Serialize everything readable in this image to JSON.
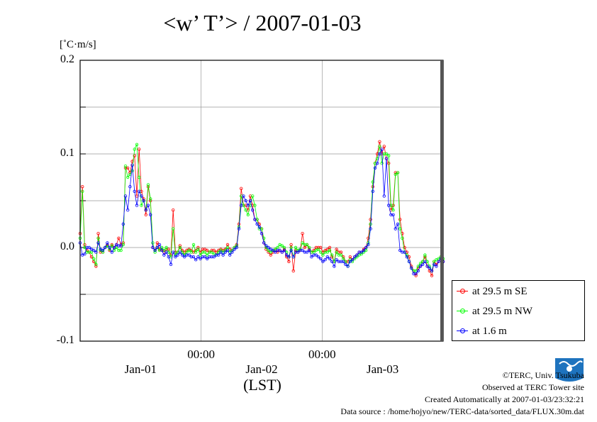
{
  "title": "<w’ T’> / 2007-01-03",
  "unit": "[˚C·m/s]",
  "xaxis_bottom_label": "(LST)",
  "legend": [
    {
      "label": "at 29.5 m SE",
      "color": "#ff0000"
    },
    {
      "label": "at 29.5 m NW",
      "color": "#00ff00"
    },
    {
      "label": "at 1.6 m",
      "color": "#0000ff"
    }
  ],
  "footer": {
    "copyright": "©TERC, Univ. Tsukuba",
    "observed": "Observed at TERC Tower site",
    "created": "Created Automatically at 2007-01-03/23:32:21",
    "source": "Data source : /home/hojyo/new/TERC-data/sorted_data/FLUX.30m.dat"
  },
  "logo_text": "TERC",
  "chart_data": {
    "type": "line",
    "ylim": [
      -0.1,
      0.2
    ],
    "yticks": [
      "0.2",
      "0.1",
      "0.0",
      "-0.1"
    ],
    "xlim_hours": [
      0,
      72
    ],
    "xticks_top": [
      {
        "label": "00:00",
        "hour": 24
      },
      {
        "label": "00:00",
        "hour": 48
      }
    ],
    "xticks_bottom": [
      {
        "label": "Jan-01",
        "hour": 12
      },
      {
        "label": "Jan-02",
        "hour": 36
      },
      {
        "label": "Jan-03",
        "hour": 60
      }
    ],
    "grid": true,
    "series": [
      {
        "name": "at 29.5 m SE",
        "color": "#ff0000",
        "values": [
          0.015,
          0.065,
          0.003,
          -0.003,
          -0.005,
          -0.01,
          -0.015,
          -0.02,
          0.015,
          -0.005,
          -0.005,
          0.0,
          0.003,
          -0.003,
          0.003,
          0.0,
          0.003,
          0.01,
          0.003,
          0.005,
          0.085,
          0.085,
          0.08,
          0.092,
          0.098,
          0.055,
          0.105,
          0.06,
          0.052,
          0.035,
          0.065,
          0.05,
          0.0,
          -0.003,
          0.005,
          -0.002,
          -0.002,
          -0.005,
          -0.002,
          -0.002,
          -0.008,
          0.04,
          -0.005,
          -0.005,
          0.002,
          -0.003,
          -0.005,
          -0.003,
          -0.002,
          -0.003,
          -0.005,
          -0.003,
          0.0,
          -0.005,
          -0.002,
          -0.002,
          -0.003,
          -0.005,
          -0.003,
          -0.003,
          -0.005,
          -0.003,
          -0.002,
          -0.003,
          -0.002,
          0.003,
          -0.002,
          -0.003,
          0.0,
          0.003,
          0.025,
          0.063,
          0.045,
          0.045,
          0.04,
          0.055,
          0.045,
          0.03,
          0.03,
          0.025,
          0.02,
          0.005,
          -0.002,
          -0.005,
          -0.008,
          -0.005,
          -0.003,
          -0.005,
          -0.003,
          -0.005,
          -0.002,
          -0.01,
          -0.015,
          0.003,
          -0.025,
          -0.003,
          -0.005,
          -0.003,
          0.015,
          0.0,
          0.003,
          -0.002,
          -0.005,
          -0.003,
          0.0,
          0.0,
          0.0,
          -0.005,
          -0.003,
          -0.002,
          0.0,
          -0.01,
          -0.015,
          -0.002,
          -0.005,
          -0.005,
          -0.01,
          -0.015,
          -0.015,
          -0.01,
          -0.013,
          -0.01,
          -0.008,
          -0.005,
          -0.005,
          -0.002,
          0.0,
          0.01,
          0.03,
          0.065,
          0.09,
          0.1,
          0.113,
          0.1,
          0.108,
          0.095,
          0.09,
          0.04,
          0.045,
          0.08,
          0.08,
          0.03,
          0.015,
          0.0,
          -0.005,
          -0.01,
          -0.02,
          -0.025,
          -0.03,
          -0.022,
          -0.02,
          -0.015,
          -0.01,
          -0.02,
          -0.025,
          -0.03,
          -0.015,
          -0.018,
          -0.015,
          -0.01,
          -0.015
        ]
      },
      {
        "name": "at 29.5 m NW",
        "color": "#00ff00",
        "values": [
          0.01,
          0.06,
          0.0,
          -0.005,
          -0.005,
          -0.005,
          -0.012,
          -0.018,
          0.01,
          -0.003,
          -0.005,
          0.0,
          0.002,
          -0.002,
          0.002,
          -0.003,
          0.0,
          -0.003,
          -0.003,
          0.003,
          0.087,
          0.075,
          0.078,
          0.082,
          0.105,
          0.11,
          0.075,
          0.045,
          0.05,
          0.04,
          0.067,
          0.052,
          0.005,
          -0.005,
          0.0,
          -0.003,
          0.0,
          -0.003,
          0.0,
          -0.005,
          -0.01,
          0.02,
          -0.008,
          -0.005,
          0.0,
          -0.005,
          -0.008,
          -0.005,
          -0.003,
          -0.005,
          0.003,
          -0.005,
          -0.002,
          -0.008,
          -0.005,
          -0.005,
          -0.008,
          -0.005,
          -0.005,
          -0.007,
          -0.008,
          -0.005,
          -0.003,
          -0.005,
          -0.003,
          0.0,
          -0.005,
          -0.003,
          0.0,
          0.002,
          0.022,
          0.055,
          0.045,
          0.04,
          0.035,
          0.045,
          0.055,
          0.045,
          0.03,
          0.02,
          0.02,
          0.01,
          0.0,
          -0.003,
          -0.005,
          -0.003,
          -0.002,
          0.0,
          0.003,
          0.002,
          0.0,
          -0.005,
          -0.01,
          0.0,
          -0.01,
          0.0,
          -0.003,
          -0.002,
          0.005,
          0.003,
          0.003,
          0.0,
          -0.005,
          -0.005,
          -0.003,
          -0.002,
          -0.005,
          -0.008,
          -0.005,
          -0.005,
          -0.003,
          -0.008,
          -0.015,
          -0.005,
          -0.008,
          -0.008,
          -0.012,
          -0.015,
          -0.02,
          -0.013,
          -0.015,
          -0.012,
          -0.01,
          -0.008,
          -0.007,
          -0.005,
          -0.003,
          0.005,
          0.025,
          0.07,
          0.09,
          0.095,
          0.108,
          0.09,
          0.1,
          0.1,
          0.098,
          0.045,
          0.04,
          0.078,
          0.08,
          0.02,
          0.01,
          -0.005,
          -0.008,
          -0.015,
          -0.022,
          -0.025,
          -0.025,
          -0.02,
          -0.017,
          -0.015,
          -0.008,
          -0.015,
          -0.02,
          -0.025,
          -0.015,
          -0.013,
          -0.012,
          -0.01,
          -0.012
        ]
      },
      {
        "name": "at 1.6 m",
        "color": "#0000ff",
        "values": [
          0.005,
          -0.008,
          -0.007,
          0.0,
          0.0,
          -0.002,
          -0.003,
          -0.005,
          0.005,
          -0.002,
          -0.003,
          0.0,
          0.005,
          0.0,
          -0.005,
          0.0,
          0.003,
          0.002,
          0.002,
          0.025,
          0.055,
          0.04,
          0.065,
          0.088,
          0.06,
          0.045,
          0.06,
          0.055,
          0.05,
          0.04,
          0.045,
          0.035,
          0.0,
          -0.003,
          0.0,
          0.003,
          -0.003,
          -0.008,
          -0.005,
          -0.01,
          -0.018,
          -0.005,
          -0.01,
          -0.008,
          -0.005,
          -0.008,
          -0.01,
          -0.008,
          -0.008,
          -0.01,
          -0.01,
          -0.013,
          -0.01,
          -0.012,
          -0.01,
          -0.01,
          -0.012,
          -0.01,
          -0.01,
          -0.01,
          -0.008,
          -0.008,
          -0.005,
          -0.008,
          -0.005,
          -0.003,
          -0.008,
          -0.005,
          -0.002,
          0.0,
          0.02,
          0.045,
          0.055,
          0.05,
          0.045,
          0.05,
          0.04,
          0.03,
          0.025,
          0.022,
          0.015,
          0.005,
          0.002,
          0.0,
          -0.002,
          -0.003,
          -0.005,
          -0.003,
          -0.003,
          -0.005,
          -0.003,
          -0.008,
          -0.01,
          -0.003,
          -0.01,
          -0.005,
          -0.005,
          -0.003,
          -0.003,
          -0.005,
          -0.005,
          -0.003,
          -0.01,
          -0.008,
          -0.008,
          -0.01,
          -0.012,
          -0.015,
          -0.013,
          -0.01,
          -0.012,
          -0.015,
          -0.02,
          -0.013,
          -0.015,
          -0.015,
          -0.015,
          -0.018,
          -0.02,
          -0.015,
          -0.013,
          -0.01,
          -0.008,
          -0.005,
          -0.005,
          -0.003,
          0.0,
          0.003,
          0.02,
          0.06,
          0.085,
          0.09,
          0.1,
          0.105,
          0.055,
          0.095,
          0.045,
          0.035,
          0.035,
          0.02,
          0.025,
          -0.003,
          -0.005,
          -0.005,
          -0.01,
          -0.015,
          -0.022,
          -0.028,
          -0.028,
          -0.025,
          -0.02,
          -0.018,
          -0.015,
          -0.02,
          -0.022,
          -0.025,
          -0.018,
          -0.02,
          -0.015,
          -0.012,
          -0.015
        ]
      }
    ]
  }
}
